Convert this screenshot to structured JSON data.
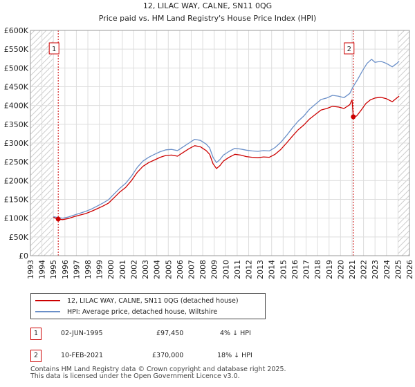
{
  "chart_data": {
    "type": "line",
    "title": "12, LILAC WAY, CALNE, SN11 0QG",
    "subtitle": "Price paid vs. HM Land Registry's House Price Index (HPI)",
    "xlim": [
      1993,
      2026
    ],
    "ylim": [
      0,
      600000
    ],
    "x_ticks": [
      "1993",
      "1994",
      "1995",
      "1996",
      "1997",
      "1998",
      "1999",
      "2000",
      "2001",
      "2002",
      "2003",
      "2004",
      "2005",
      "2006",
      "2007",
      "2008",
      "2009",
      "2010",
      "2011",
      "2012",
      "2013",
      "2014",
      "2015",
      "2016",
      "2017",
      "2018",
      "2019",
      "2020",
      "2021",
      "2022",
      "2023",
      "2024",
      "2025",
      "2026"
    ],
    "y_ticks": [
      {
        "value": 0,
        "label": "£0"
      },
      {
        "value": 50000,
        "label": "£50K"
      },
      {
        "value": 100000,
        "label": "£100K"
      },
      {
        "value": 150000,
        "label": "£150K"
      },
      {
        "value": 200000,
        "label": "£200K"
      },
      {
        "value": 250000,
        "label": "£250K"
      },
      {
        "value": 300000,
        "label": "£300K"
      },
      {
        "value": 350000,
        "label": "£350K"
      },
      {
        "value": 400000,
        "label": "£400K"
      },
      {
        "value": 450000,
        "label": "£450K"
      },
      {
        "value": 500000,
        "label": "£500K"
      },
      {
        "value": 550000,
        "label": "£550K"
      },
      {
        "value": 600000,
        "label": "£600K"
      }
    ],
    "hatched_ranges": [
      [
        1993,
        1995.0
      ],
      [
        2025.0,
        2026
      ]
    ],
    "series": [
      {
        "name": "12, LILAC WAY, CALNE, SN11 0QG (detached house)",
        "color": "#cc0000",
        "x": [
          1995.0,
          1995.42,
          1995.8,
          1996.3,
          1996.8,
          1997.3,
          1997.8,
          1998.3,
          1998.8,
          1999.3,
          1999.8,
          2000.3,
          2000.8,
          2001.3,
          2001.8,
          2002.3,
          2002.8,
          2003.3,
          2003.8,
          2004.3,
          2004.8,
          2005.3,
          2005.8,
          2006.3,
          2006.8,
          2007.3,
          2007.8,
          2008.3,
          2008.6,
          2008.9,
          2009.2,
          2009.5,
          2009.8,
          2010.3,
          2010.8,
          2011.3,
          2011.8,
          2012.3,
          2012.8,
          2013.3,
          2013.8,
          2014.3,
          2014.8,
          2015.3,
          2015.8,
          2016.3,
          2016.8,
          2017.3,
          2017.8,
          2018.3,
          2018.8,
          2019.3,
          2019.8,
          2020.3,
          2020.8,
          2021.0,
          2021.11,
          2021.4,
          2021.8,
          2022.2,
          2022.6,
          2023.0,
          2023.5,
          2024.0,
          2024.5,
          2024.9,
          2025.1
        ],
        "values": [
          102000,
          97450,
          96000,
          99000,
          104000,
          108000,
          112000,
          118000,
          125000,
          132000,
          140000,
          155000,
          170000,
          182000,
          200000,
          222000,
          238000,
          248000,
          255000,
          262000,
          267000,
          268000,
          265000,
          275000,
          285000,
          293000,
          290000,
          280000,
          270000,
          245000,
          232000,
          240000,
          252000,
          262000,
          270000,
          268000,
          264000,
          262000,
          261000,
          263000,
          262000,
          270000,
          283000,
          300000,
          318000,
          335000,
          348000,
          364000,
          376000,
          388000,
          392000,
          398000,
          396000,
          392000,
          402000,
          415000,
          370000,
          372000,
          388000,
          405000,
          415000,
          420000,
          422000,
          418000,
          410000,
          420000,
          425000
        ]
      },
      {
        "name": "HPI: Average price, detached house, Wiltshire",
        "color": "#6a8fc8",
        "x": [
          1995.0,
          1995.42,
          1995.8,
          1996.3,
          1996.8,
          1997.3,
          1997.8,
          1998.3,
          1998.8,
          1999.3,
          1999.8,
          2000.3,
          2000.8,
          2001.3,
          2001.8,
          2002.3,
          2002.8,
          2003.3,
          2003.8,
          2004.3,
          2004.8,
          2005.3,
          2005.8,
          2006.3,
          2006.8,
          2007.3,
          2007.8,
          2008.3,
          2008.6,
          2008.9,
          2009.2,
          2009.5,
          2009.8,
          2010.3,
          2010.8,
          2011.3,
          2011.8,
          2012.3,
          2012.8,
          2013.3,
          2013.8,
          2014.3,
          2014.8,
          2015.3,
          2015.8,
          2016.3,
          2016.8,
          2017.3,
          2017.8,
          2018.3,
          2018.8,
          2019.3,
          2019.8,
          2020.3,
          2020.8,
          2021.11,
          2021.5,
          2021.9,
          2022.3,
          2022.7,
          2023.0,
          2023.5,
          2024.0,
          2024.5,
          2024.9,
          2025.1
        ],
        "values": [
          104000,
          101500,
          100000,
          103000,
          108000,
          113000,
          118000,
          124000,
          132000,
          140000,
          149000,
          165000,
          180000,
          193000,
          212000,
          235000,
          252000,
          262000,
          270000,
          277000,
          282000,
          283000,
          280000,
          290000,
          300000,
          310000,
          307000,
          297000,
          287000,
          262000,
          248000,
          256000,
          268000,
          278000,
          286000,
          284000,
          281000,
          279000,
          278000,
          280000,
          279000,
          288000,
          302000,
          320000,
          340000,
          358000,
          372000,
          390000,
          403000,
          416000,
          420000,
          427000,
          425000,
          421000,
          432000,
          451000,
          470000,
          492000,
          512000,
          523000,
          515000,
          518000,
          512000,
          503000,
          512000,
          518000
        ]
      }
    ],
    "sales": [
      {
        "label": "1",
        "x": 1995.42,
        "value": 97450,
        "date": "02-JUN-1995",
        "price": "£97,450",
        "hpi": "4% ↓ HPI"
      },
      {
        "label": "2",
        "x": 2021.11,
        "value": 370000,
        "date": "10-FEB-2021",
        "price": "£370,000",
        "hpi": "18% ↓ HPI"
      }
    ]
  },
  "legend": {
    "red_label": "12, LILAC WAY, CALNE, SN11 0QG (detached house)",
    "blue_label": "HPI: Average price, detached house, Wiltshire"
  },
  "transactions": [
    {
      "num": "1",
      "date": "02-JUN-1995",
      "price": "£97,450",
      "hpi": "4% ↓ HPI"
    },
    {
      "num": "2",
      "date": "10-FEB-2021",
      "price": "£370,000",
      "hpi": "18% ↓ HPI"
    }
  ],
  "footer": {
    "line1": "Contains HM Land Registry data © Crown copyright and database right 2025.",
    "line2": "This data is licensed under the Open Government Licence v3.0."
  },
  "colors": {
    "red": "#cc0000",
    "blue": "#6a8fc8",
    "grid": "#dddddd",
    "hatch": "#cccccc"
  }
}
